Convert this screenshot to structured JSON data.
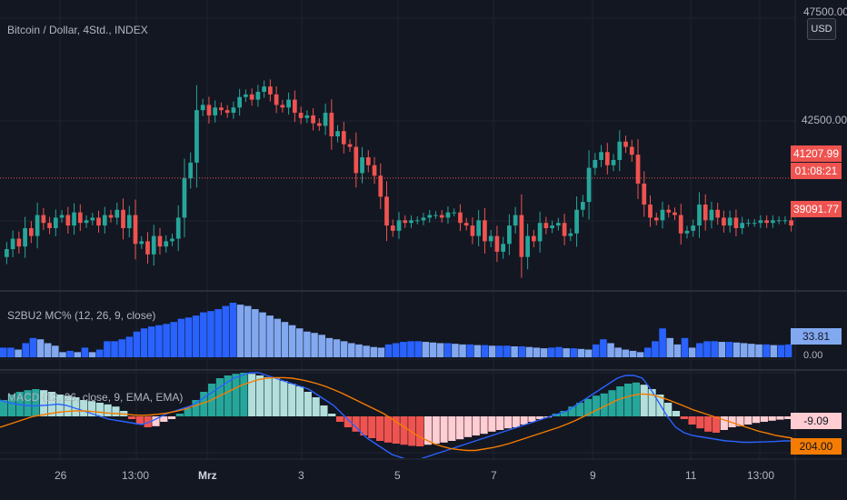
{
  "header": {
    "symbol_title": "Bitcoin / Dollar, 4Std., INDEX",
    "currency": "USD"
  },
  "price_axis": {
    "labels": [
      "47500.00",
      "42500.00"
    ],
    "last_price": "41207.99",
    "countdown": "01:08:21",
    "low_marker": "39091.77"
  },
  "indicators": {
    "macd_pct_title": "S2BU2 MC% (12, 26, 9, close)",
    "macd_pct_value": "33.81",
    "macd_pct_zero": "0.00",
    "macd_title": "MACD (12, 26, close, 9, EMA, EMA)",
    "macd_value": "-9.09",
    "macd_signal_value": "204.00"
  },
  "time_axis": {
    "labels": [
      "26",
      "13:00",
      "Mrz",
      "3",
      "5",
      "7",
      "9",
      "11",
      "13:00"
    ]
  },
  "colors": {
    "background": "#131722",
    "up": "#26a69a",
    "down": "#ef5350",
    "bar_dark_blue": "#2962ff",
    "bar_light_blue": "#82a8f0",
    "macd_line": "#2962ff",
    "signal_line": "#f57c00",
    "hist_up_strong": "#26a69a",
    "hist_up_weak": "#b2dfdb",
    "hist_down_strong": "#ef5350",
    "hist_down_weak": "#ffcdd2"
  },
  "chart_data": [
    {
      "type": "candlestick",
      "title": "Bitcoin / Dollar, 4Std., INDEX",
      "ylim": [
        37600,
        48000
      ],
      "close": [
        38500,
        38900,
        38600,
        39300,
        39000,
        39800,
        39500,
        39300,
        39700,
        39800,
        39400,
        39900,
        39500,
        39600,
        39700,
        39400,
        39800,
        39700,
        40000,
        39300,
        39800,
        38700,
        38800,
        38300,
        39000,
        38600,
        38800,
        38900,
        39700,
        41200,
        41800,
        43800,
        44000,
        43600,
        43900,
        43800,
        43700,
        43900,
        44300,
        44400,
        44200,
        44500,
        44700,
        44400,
        44000,
        43900,
        44200,
        43700,
        43500,
        43600,
        43300,
        43200,
        43700,
        42800,
        43000,
        42500,
        42400,
        41400,
        42000,
        41700,
        41300,
        40500,
        39400,
        39200,
        39600,
        39500,
        39600,
        39600,
        39700,
        39800,
        39800,
        39700,
        39900,
        39900,
        39500,
        39400,
        39000,
        39600,
        38800,
        39000,
        38400,
        38700,
        39400,
        39800,
        38200,
        39000,
        38800,
        39500,
        39300,
        39400,
        39500,
        39000,
        39100,
        40000,
        40300,
        41600,
        41900,
        42200,
        41700,
        41900,
        42600,
        42400,
        42100,
        41000,
        40200,
        39700,
        39600,
        40000,
        39900,
        39800,
        39100,
        39200,
        39400,
        40200,
        39600,
        40000,
        39700,
        39400,
        39700,
        39300,
        39500,
        39500,
        39500,
        39600,
        39500,
        39600,
        39600,
        39600,
        39400
      ],
      "annotations": [
        "47500.00",
        "42500.00",
        "41207.99",
        "01:08:21",
        "39091.77"
      ]
    },
    {
      "type": "bar",
      "title": "S2BU2 MC% (12, 26, 9, close)",
      "values": [
        15,
        15,
        12,
        22,
        30,
        28,
        22,
        18,
        8,
        10,
        8,
        15,
        8,
        12,
        25,
        25,
        28,
        32,
        40,
        45,
        48,
        50,
        52,
        55,
        60,
        62,
        65,
        70,
        72,
        75,
        80,
        85,
        82,
        80,
        75,
        70,
        65,
        60,
        55,
        50,
        45,
        40,
        38,
        35,
        30,
        28,
        25,
        22,
        20,
        18,
        16,
        15,
        20,
        22,
        24,
        25,
        25,
        24,
        23,
        22,
        22,
        21,
        20,
        20,
        19,
        19,
        18,
        18,
        18,
        17,
        17,
        16,
        15,
        14,
        15,
        16,
        14,
        14,
        13,
        12,
        20,
        28,
        22,
        15,
        12,
        10,
        8,
        15,
        25,
        45,
        30,
        20,
        30,
        15,
        22,
        25,
        25,
        24,
        24,
        23,
        22,
        21,
        20,
        20,
        19,
        19,
        20
      ],
      "annotations": [
        "33.81",
        "0.00"
      ]
    },
    {
      "type": "bar",
      "title": "MACD (12, 26, close, 9, EMA, EMA)",
      "values": [
        30,
        40,
        45,
        48,
        50,
        48,
        45,
        40,
        38,
        35,
        30,
        28,
        25,
        22,
        18,
        10,
        -5,
        -15,
        -20,
        -18,
        -10,
        -5,
        5,
        15,
        30,
        45,
        60,
        70,
        75,
        78,
        80,
        78,
        75,
        72,
        70,
        65,
        60,
        55,
        45,
        35,
        20,
        5,
        -10,
        -20,
        -28,
        -35,
        -40,
        -45,
        -48,
        -50,
        -52,
        -54,
        -55,
        -52,
        -50,
        -48,
        -45,
        -42,
        -38,
        -35,
        -32,
        -28,
        -25,
        -22,
        -20,
        -15,
        -10,
        -5,
        -2,
        5,
        10,
        18,
        25,
        32,
        38,
        42,
        48,
        55,
        60,
        62,
        58,
        50,
        40,
        25,
        10,
        -5,
        -15,
        -22,
        -28,
        -30,
        -25,
        -20,
        -18,
        -15,
        -12,
        -10,
        -8,
        -6,
        -5
      ],
      "series": [
        {
          "name": "MACD",
          "values": [
            60,
            50,
            45,
            40,
            38,
            40,
            42,
            45,
            40,
            30,
            20,
            10,
            0,
            -10,
            -15,
            -20,
            -25,
            -30,
            -20,
            -5,
            10,
            20,
            30,
            40,
            60,
            80,
            100,
            120,
            140,
            150,
            160,
            160,
            150,
            140,
            130,
            120,
            110,
            100,
            80,
            60,
            40,
            10,
            -20,
            -50,
            -80,
            -100,
            -120,
            -140,
            -150,
            -160,
            -160,
            -150,
            -140,
            -130,
            -120,
            -110,
            -100,
            -90,
            -80,
            -70,
            -60,
            -50,
            -40,
            -30,
            -20,
            -10,
            0,
            10,
            20,
            40,
            60,
            80,
            100,
            120,
            140,
            150,
            150,
            140,
            100,
            50,
            0,
            -40,
            -60,
            -70,
            -75,
            -80,
            -85,
            -90,
            -92,
            -95,
            -95,
            -94,
            -93,
            -92,
            -90,
            -90
          ]
        },
        {
          "name": "Signal",
          "values": [
            -40,
            -30,
            -20,
            -10,
            0,
            5,
            10,
            15,
            18,
            20,
            20,
            18,
            15,
            12,
            10,
            8,
            5,
            4,
            5,
            8,
            12,
            18,
            25,
            35,
            45,
            55,
            70,
            85,
            100,
            115,
            125,
            135,
            140,
            142,
            142,
            140,
            135,
            128,
            120,
            110,
            98,
            85,
            70,
            55,
            40,
            25,
            10,
            -10,
            -30,
            -50,
            -70,
            -85,
            -100,
            -110,
            -118,
            -122,
            -125,
            -125,
            -120,
            -115,
            -108,
            -100,
            -90,
            -80,
            -70,
            -60,
            -50,
            -40,
            -28,
            -15,
            0,
            15,
            30,
            45,
            60,
            70,
            78,
            82,
            80,
            72,
            62,
            50,
            38,
            25,
            15,
            5,
            -5,
            -15,
            -25,
            -35,
            -45,
            -55,
            -62,
            -70,
            -75,
            -80
          ]
        }
      ],
      "annotations": [
        "-9.09",
        "204.00"
      ]
    }
  ]
}
